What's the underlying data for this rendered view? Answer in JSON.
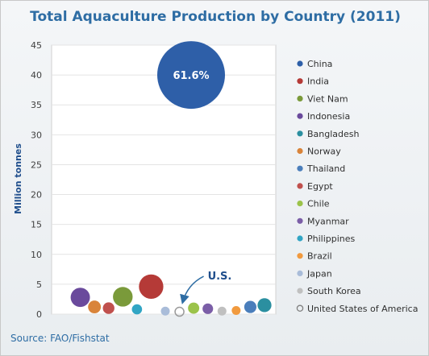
{
  "chart_data": {
    "type": "bubble",
    "title": "Total Aquaculture Production by Country (2011)",
    "ylabel": "Million tonnes",
    "ylim": [
      0,
      45
    ],
    "yticks": [
      0,
      5,
      10,
      15,
      20,
      25,
      30,
      35,
      40,
      45
    ],
    "legend_position": "right",
    "source": "Source: FAO/Fishstat",
    "series": [
      {
        "name": "China",
        "y": 40.0,
        "size": 61.6,
        "color": "#2e5fa8",
        "label": "61.6%"
      },
      {
        "name": "Indonesia",
        "y": 2.8,
        "size": 5.0,
        "color": "#6a4a9c"
      },
      {
        "name": "Norway",
        "y": 1.2,
        "size": 2.2,
        "color": "#d9843a"
      },
      {
        "name": "Egypt",
        "y": 1.0,
        "size": 1.8,
        "color": "#c0504d"
      },
      {
        "name": "Viet Nam",
        "y": 2.9,
        "size": 5.2,
        "color": "#7a9a3a"
      },
      {
        "name": "Philippines",
        "y": 0.8,
        "size": 1.4,
        "color": "#31a5c4"
      },
      {
        "name": "India",
        "y": 4.6,
        "size": 8.0,
        "color": "#b53a37"
      },
      {
        "name": "Japan",
        "y": 0.5,
        "size": 0.8,
        "color": "#a9bcd9"
      },
      {
        "name": "United States of America",
        "y": 0.4,
        "size": 0.8,
        "color": "#a0a0a0"
      },
      {
        "name": "Chile",
        "y": 1.0,
        "size": 1.7,
        "color": "#9bc34a"
      },
      {
        "name": "Myanmar",
        "y": 0.9,
        "size": 1.5,
        "color": "#7b5ea7"
      },
      {
        "name": "South Korea",
        "y": 0.5,
        "size": 0.8,
        "color": "#c0c0c0"
      },
      {
        "name": "Brazil",
        "y": 0.6,
        "size": 1.0,
        "color": "#f19a3e"
      },
      {
        "name": "Thailand",
        "y": 1.2,
        "size": 2.0,
        "color": "#4a7ebb"
      },
      {
        "name": "Bangladesh",
        "y": 1.5,
        "size": 2.6,
        "color": "#2b8fa0"
      }
    ],
    "legend": [
      {
        "name": "China",
        "color": "#2e5fa8"
      },
      {
        "name": "India",
        "color": "#b53a37"
      },
      {
        "name": "Viet Nam",
        "color": "#7a9a3a"
      },
      {
        "name": "Indonesia",
        "color": "#6a4a9c"
      },
      {
        "name": "Bangladesh",
        "color": "#2b8fa0"
      },
      {
        "name": "Norway",
        "color": "#d9843a"
      },
      {
        "name": "Thailand",
        "color": "#4a7ebb"
      },
      {
        "name": "Egypt",
        "color": "#c0504d"
      },
      {
        "name": "Chile",
        "color": "#9bc34a"
      },
      {
        "name": "Myanmar",
        "color": "#7b5ea7"
      },
      {
        "name": "Philippines",
        "color": "#31a5c4"
      },
      {
        "name": "Brazil",
        "color": "#f19a3e"
      },
      {
        "name": "Japan",
        "color": "#a9bcd9"
      },
      {
        "name": "South Korea",
        "color": "#c0c0c0"
      },
      {
        "name": "United States of America",
        "color": "#a0a0a0",
        "hollow": true
      }
    ],
    "annotation": {
      "text": "U.S.",
      "target": "United States of America"
    }
  }
}
